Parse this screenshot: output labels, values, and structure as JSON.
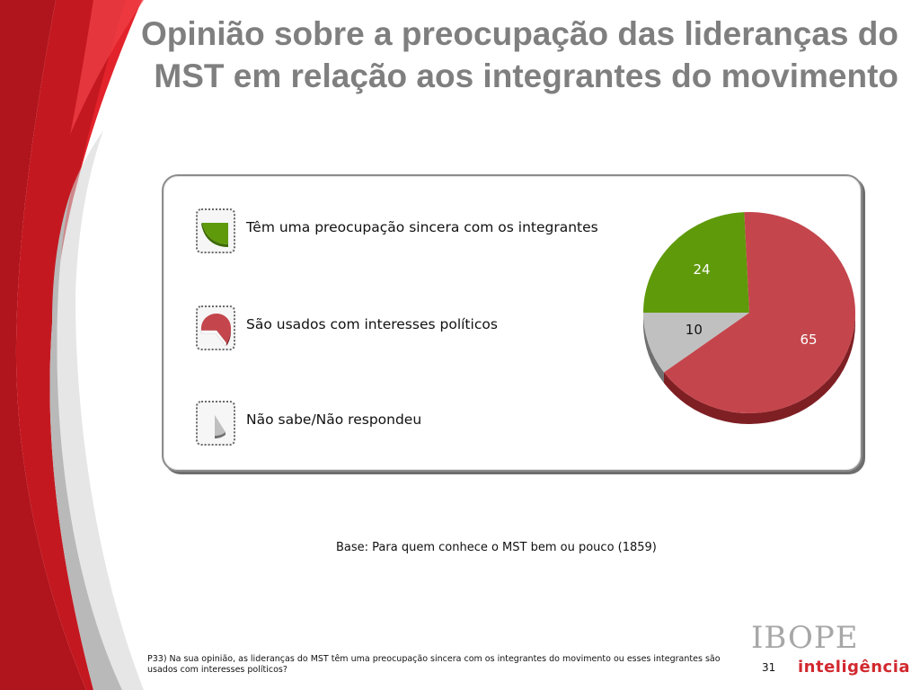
{
  "slide": {
    "title": "Opinião sobre a preocupação das lideranças do MST em relação aos integrantes do movimento",
    "base": "Base: Para quem conhece o MST bem ou pouco (1859)",
    "footnote": "P33) Na sua opinião, as lideranças do MST têm uma preocupação sincera com os integrantes do movimento ou esses integrantes são usados com interesses políticos?",
    "page_number": "31"
  },
  "logo": {
    "top": "IBOPE",
    "bottom": "inteligência"
  },
  "colors": {
    "red_band": "#b0141c",
    "bright_red": "#e3232b",
    "gray_band": "#b9b9b9",
    "title_gray": "#7f7f7f",
    "green": "#5f9a0a",
    "red": "#c4464c",
    "gray": "#c0c0c0"
  },
  "chart_data": {
    "type": "pie",
    "title": "",
    "unit": "%",
    "series": [
      {
        "label": "Têm uma preocupação sincera com os integrantes",
        "value": 24,
        "color": "#5f9a0a",
        "side_color": "#3d6a03"
      },
      {
        "label": "São usados com interesses políticos",
        "value": 65,
        "color": "#c4464c",
        "side_color": "#7e1f24"
      },
      {
        "label": "Não sabe/Não respondeu",
        "value": 10,
        "color": "#c0c0c0",
        "side_color": "#707070"
      }
    ],
    "legend_position": "left",
    "style": "3d"
  }
}
